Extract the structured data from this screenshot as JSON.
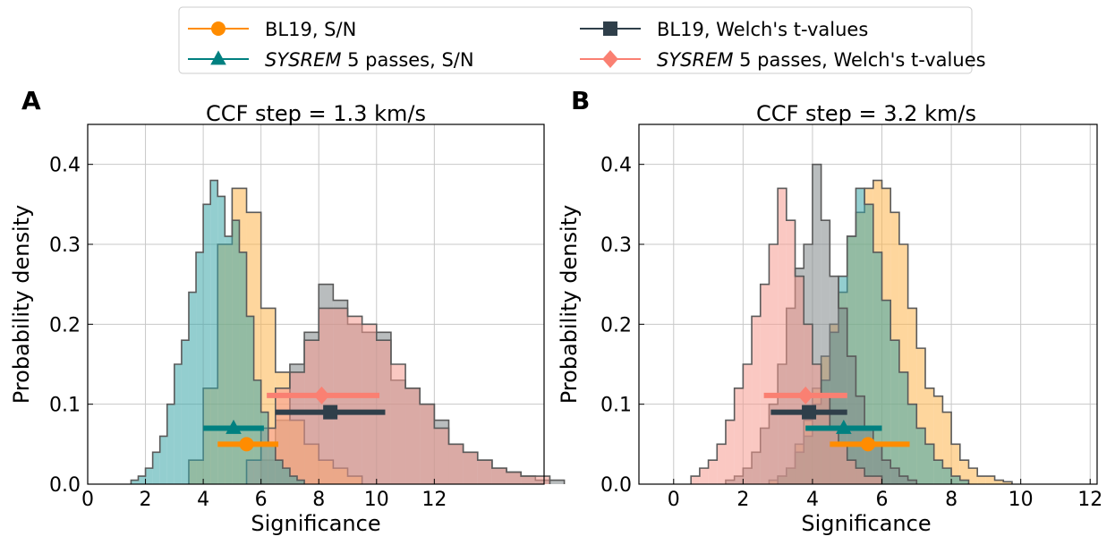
{
  "legend": {
    "entries": [
      {
        "id": "bl19-sn",
        "prefix": "",
        "italic": "",
        "suffix": "BL19, S/N",
        "color": "#ff8c00",
        "marker": "circle"
      },
      {
        "id": "sysrem-sn",
        "prefix": "",
        "italic": "SYSREM",
        "suffix": " 5 passes, S/N",
        "color": "#008080",
        "marker": "triangle"
      },
      {
        "id": "bl19-welch",
        "prefix": "",
        "italic": "",
        "suffix": "BL19, Welch's t-values",
        "color": "#2f3f4a",
        "marker": "square"
      },
      {
        "id": "sysrem-welch",
        "prefix": "",
        "italic": "SYSREM",
        "suffix": " 5 passes, Welch's t-values",
        "color": "#fa8072",
        "marker": "diamond"
      }
    ]
  },
  "hist_colors": {
    "bl19-sn": "#fdb44c",
    "sysrem-sn": "#3aa6a8",
    "bl19-welch": "#7f8688",
    "sysrem-welch": "#f59a90"
  },
  "chart_data": [
    {
      "type": "histogram",
      "panel_label": "A",
      "title": "CCF step = 1.3 km/s",
      "xlabel": "Significance",
      "ylabel": "Probability density",
      "xlim": [
        0,
        15.8
      ],
      "ylim": [
        0,
        0.45
      ],
      "xticks": [
        0,
        2,
        4,
        6,
        8,
        10,
        12
      ],
      "yticks": [
        0.0,
        0.1,
        0.2,
        0.3,
        0.4
      ],
      "ytick_labels": [
        "0.0",
        "0.1",
        "0.2",
        "0.3",
        "0.4"
      ],
      "series": [
        {
          "id": "bl19-welch",
          "name": "BL19, Welch's t-values",
          "x_start": 6.0,
          "bin_width": 0.5,
          "values": [
            0.03,
            0.08,
            0.15,
            0.19,
            0.25,
            0.23,
            0.2,
            0.19,
            0.19,
            0.13,
            0.12,
            0.1,
            0.08,
            0.05,
            0.04,
            0.03,
            0.02,
            0.015,
            0.01,
            0.005,
            0.005
          ]
        },
        {
          "id": "bl19-sn",
          "name": "BL19, S/N",
          "x_start": 3.5,
          "bin_width": 0.5,
          "values": [
            0.03,
            0.12,
            0.3,
            0.37,
            0.34,
            0.22,
            0.14,
            0.08,
            0.05,
            0.03,
            0.02,
            0.01
          ]
        },
        {
          "id": "sysrem-welch",
          "name": "SYSREM 5 passes, Welch's t-values",
          "x_start": 5.5,
          "bin_width": 0.5,
          "values": [
            0.03,
            0.07,
            0.12,
            0.14,
            0.18,
            0.22,
            0.22,
            0.21,
            0.2,
            0.18,
            0.15,
            0.12,
            0.1,
            0.07,
            0.05,
            0.04,
            0.03,
            0.02,
            0.015,
            0.01,
            0.01
          ]
        },
        {
          "id": "sysrem-sn",
          "name": "SYSREM 5 passes, S/N",
          "x_start": 1.5,
          "bin_width": 0.25,
          "values": [
            0.005,
            0.01,
            0.02,
            0.04,
            0.06,
            0.1,
            0.15,
            0.18,
            0.24,
            0.29,
            0.35,
            0.38,
            0.36,
            0.31,
            0.33,
            0.29,
            0.21,
            0.13,
            0.09,
            0.05,
            0.03,
            0.02,
            0.01,
            0.005
          ]
        }
      ],
      "markers": [
        {
          "id": "sysrem-welch",
          "x": 8.1,
          "err": [
            6.2,
            10.1
          ],
          "y": 0.111
        },
        {
          "id": "bl19-welch",
          "x": 8.4,
          "err": [
            6.5,
            10.3
          ],
          "y": 0.09
        },
        {
          "id": "sysrem-sn",
          "x": 5.05,
          "err": [
            4.0,
            6.1
          ],
          "y": 0.07
        },
        {
          "id": "bl19-sn",
          "x": 5.5,
          "err": [
            4.5,
            6.6
          ],
          "y": 0.05
        }
      ]
    },
    {
      "type": "histogram",
      "panel_label": "B",
      "title": "CCF step = 3.2 km/s",
      "xlabel": "Significance",
      "ylabel": "Probability density",
      "xlim": [
        -1,
        12.2
      ],
      "ylim": [
        0,
        0.45
      ],
      "xticks": [
        0,
        2,
        4,
        6,
        8,
        10,
        12
      ],
      "yticks": [
        0.0,
        0.1,
        0.2,
        0.3,
        0.4
      ],
      "ytick_labels": [
        "0.0",
        "0.1",
        "0.2",
        "0.3",
        "0.4"
      ],
      "series": [
        {
          "id": "bl19-sn",
          "name": "BL19, S/N",
          "x_start": 2.75,
          "bin_width": 0.25,
          "values": [
            0.005,
            0.01,
            0.02,
            0.05,
            0.08,
            0.12,
            0.16,
            0.2,
            0.24,
            0.31,
            0.34,
            0.37,
            0.38,
            0.37,
            0.34,
            0.3,
            0.22,
            0.17,
            0.12,
            0.11,
            0.09,
            0.05,
            0.03,
            0.02,
            0.01,
            0.01,
            0.005,
            0.003
          ]
        },
        {
          "id": "sysrem-sn",
          "name": "SYSREM 5 passes, S/N",
          "x_start": 3.0,
          "bin_width": 0.25,
          "values": [
            0.01,
            0.02,
            0.04,
            0.06,
            0.1,
            0.13,
            0.19,
            0.26,
            0.31,
            0.37,
            0.35,
            0.29,
            0.23,
            0.18,
            0.14,
            0.1,
            0.07,
            0.05,
            0.03,
            0.02,
            0.01,
            0.005
          ]
        },
        {
          "id": "bl19-welch",
          "name": "BL19, Welch's t-values",
          "x_start": 1.5,
          "bin_width": 0.25,
          "values": [
            0.005,
            0.01,
            0.02,
            0.04,
            0.07,
            0.1,
            0.15,
            0.22,
            0.27,
            0.3,
            0.4,
            0.33,
            0.26,
            0.22,
            0.16,
            0.11,
            0.07,
            0.05,
            0.03,
            0.02,
            0.01,
            0.005
          ]
        },
        {
          "id": "sysrem-welch",
          "name": "SYSREM 5 passes, Welch's t-values",
          "x_start": 0.5,
          "bin_width": 0.25,
          "values": [
            0.01,
            0.02,
            0.03,
            0.05,
            0.08,
            0.12,
            0.15,
            0.21,
            0.25,
            0.3,
            0.37,
            0.33,
            0.26,
            0.2,
            0.15,
            0.11,
            0.07,
            0.05,
            0.03,
            0.02,
            0.01,
            0.01
          ]
        }
      ],
      "markers": [
        {
          "id": "sysrem-welch",
          "x": 3.8,
          "err": [
            2.6,
            5.0
          ],
          "y": 0.111
        },
        {
          "id": "bl19-welch",
          "x": 3.9,
          "err": [
            2.8,
            5.0
          ],
          "y": 0.09
        },
        {
          "id": "sysrem-sn",
          "x": 4.9,
          "err": [
            3.8,
            6.0
          ],
          "y": 0.07
        },
        {
          "id": "bl19-sn",
          "x": 5.6,
          "err": [
            4.5,
            6.8
          ],
          "y": 0.05
        }
      ]
    }
  ]
}
